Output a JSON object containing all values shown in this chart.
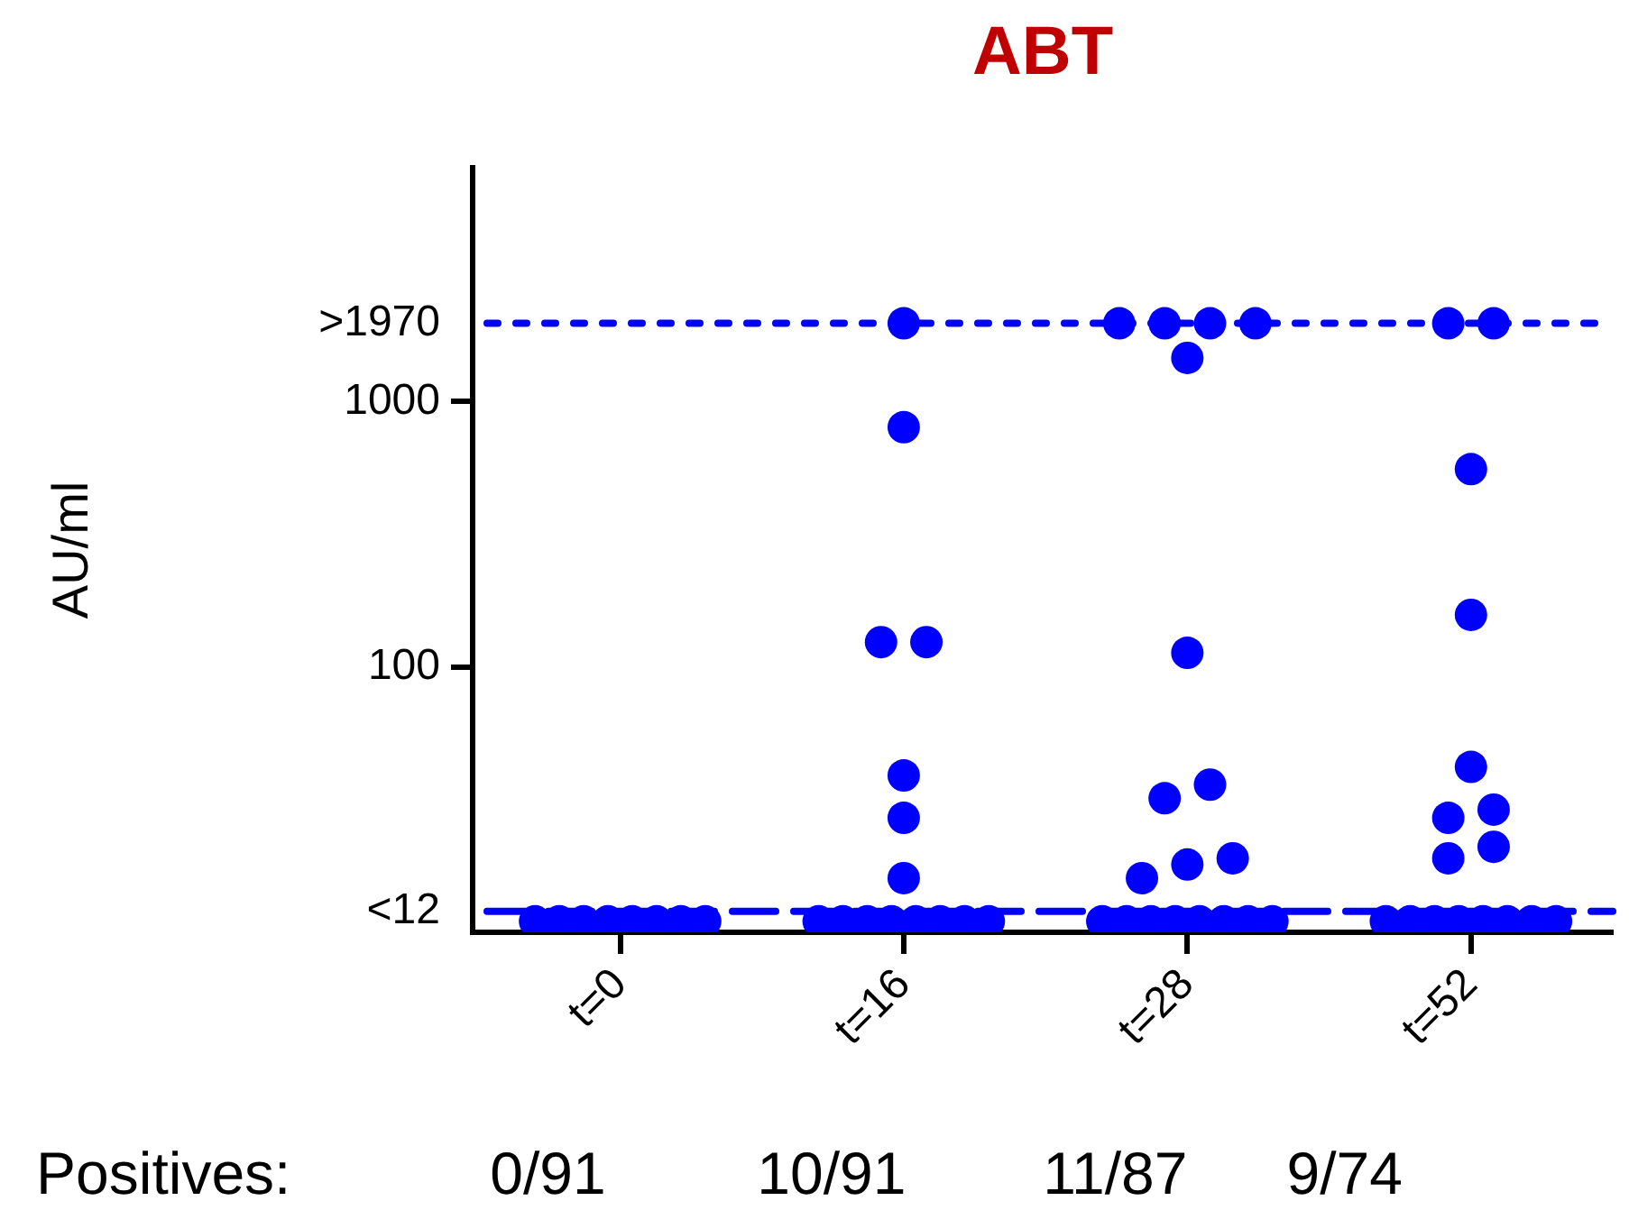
{
  "chart_data": {
    "type": "scatter",
    "title": "ABT",
    "ylabel": "AU/ml",
    "log": true,
    "marker": "circle",
    "categories": [
      "t=0",
      "t=16",
      "t=28",
      "t=52"
    ],
    "ylim": [
      10,
      7600
    ],
    "yticks": [
      {
        "value": 12,
        "label": "<12"
      },
      100,
      1000,
      {
        "value": 1970,
        "label": ">1970"
      }
    ],
    "ref_lines": [
      {
        "axis": "y",
        "value": 1970,
        "color": "#0000ff",
        "line_style": "dotted"
      },
      {
        "axis": "y",
        "value": 12,
        "color": "#0000ff",
        "line_style": "dashed"
      }
    ],
    "series": [
      {
        "color": "#0000ff",
        "x": [
          "t=0",
          "t=0",
          "t=0",
          "t=0",
          "t=0",
          "t=0",
          "t=0",
          "t=0",
          "t=16",
          "t=16",
          "t=16",
          "t=16",
          "t=16",
          "t=16",
          "t=16",
          "t=16",
          "t=16",
          "t=16",
          "t=16",
          "t=16",
          "t=16",
          "t=16",
          "t=16",
          "t=28",
          "t=28",
          "t=28",
          "t=28",
          "t=28",
          "t=28",
          "t=28",
          "t=28",
          "t=28",
          "t=28",
          "t=28",
          "t=28",
          "t=28",
          "t=28",
          "t=28",
          "t=28",
          "t=28",
          "t=28",
          "t=28",
          "t=52",
          "t=52",
          "t=52",
          "t=52",
          "t=52",
          "t=52",
          "t=52",
          "t=52",
          "t=52",
          "t=52",
          "t=52",
          "t=52",
          "t=52",
          "t=52",
          "t=52",
          "t=52",
          "t=52"
        ],
        "values": [
          11,
          11,
          11,
          11,
          11,
          11,
          11,
          11,
          1970,
          800,
          124,
          124,
          39,
          27,
          16,
          11,
          11,
          11,
          11,
          11,
          11,
          11,
          11,
          1970,
          1970,
          1970,
          1970,
          1460,
          113,
          36,
          32,
          19,
          18,
          16,
          11,
          11,
          11,
          11,
          11,
          11,
          11,
          11,
          1970,
          1970,
          556,
          157,
          42,
          29,
          27,
          21,
          19,
          11,
          11,
          11,
          11,
          11,
          11,
          11,
          11
        ]
      }
    ],
    "annotations": [
      "Positives:",
      "0/91",
      "10/91",
      "11/87",
      "9/74"
    ]
  }
}
